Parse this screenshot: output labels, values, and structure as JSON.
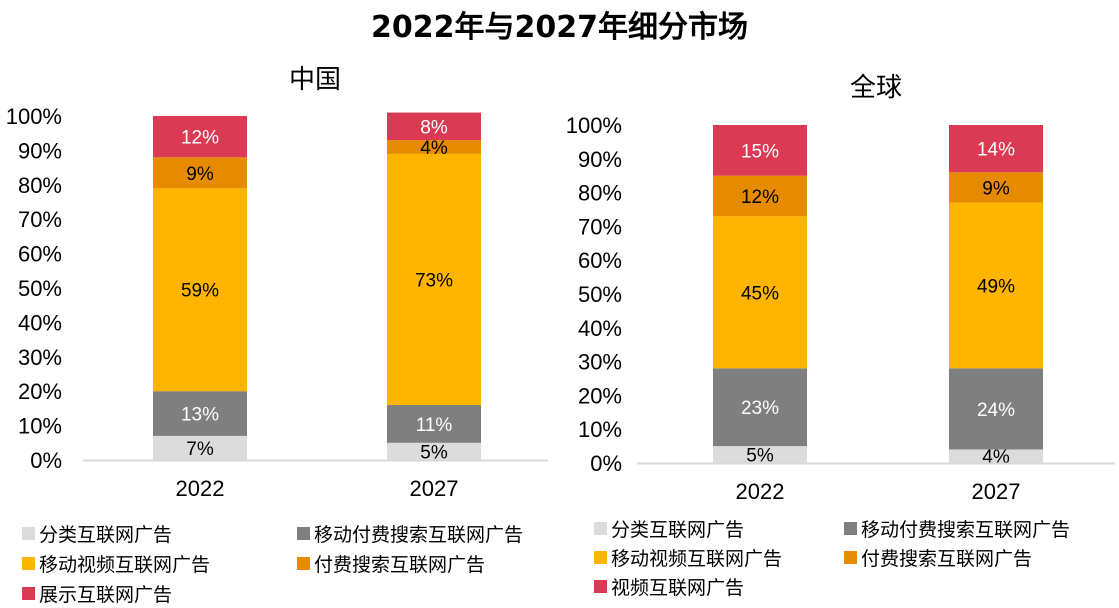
{
  "title": "2022年与2027年细分市场",
  "colors": {
    "classified": "#dcdcdc",
    "mobile_paid_search": "#7f7f7f",
    "mobile_video": "#ffb400",
    "paid_search": "#e68a00",
    "top": "#db3a55",
    "axis": "#d9d9d9"
  },
  "chart_data": [
    {
      "type": "bar",
      "stacked": true,
      "title": "中国",
      "categories": [
        "2022",
        "2027"
      ],
      "ylim": [
        0,
        100
      ],
      "yticks": [
        "0%",
        "10%",
        "20%",
        "30%",
        "40%",
        "50%",
        "60%",
        "70%",
        "80%",
        "90%",
        "100%"
      ],
      "grid": false,
      "legend_position": "bottom",
      "series": [
        {
          "name": "分类互联网广告",
          "color_key": "classified",
          "label_color": "#000000",
          "values": [
            7,
            5
          ],
          "labels": [
            "7%",
            "5%"
          ]
        },
        {
          "name": "移动付费搜索互联网广告",
          "color_key": "mobile_paid_search",
          "label_color": "#ffffff",
          "values": [
            13,
            11
          ],
          "labels": [
            "13%",
            "11%"
          ]
        },
        {
          "name": "移动视频互联网广告",
          "color_key": "mobile_video",
          "label_color": "#000000",
          "values": [
            59,
            73
          ],
          "labels": [
            "59%",
            "73%"
          ]
        },
        {
          "name": "付费搜索互联网广告",
          "color_key": "paid_search",
          "label_color": "#000000",
          "values": [
            9,
            4
          ],
          "labels": [
            "9%",
            "4%"
          ]
        },
        {
          "name": "展示互联网广告",
          "color_key": "top",
          "label_color": "#ffffff",
          "values": [
            12,
            8
          ],
          "labels": [
            "12%",
            "8%"
          ]
        }
      ]
    },
    {
      "type": "bar",
      "stacked": true,
      "title": "全球",
      "categories": [
        "2022",
        "2027"
      ],
      "ylim": [
        0,
        100
      ],
      "yticks": [
        "0%",
        "10%",
        "20%",
        "30%",
        "40%",
        "50%",
        "60%",
        "70%",
        "80%",
        "90%",
        "100%"
      ],
      "grid": false,
      "legend_position": "bottom",
      "series": [
        {
          "name": "分类互联网广告",
          "color_key": "classified",
          "label_color": "#000000",
          "values": [
            5,
            4
          ],
          "labels": [
            "5%",
            "4%"
          ]
        },
        {
          "name": "移动付费搜索互联网广告",
          "color_key": "mobile_paid_search",
          "label_color": "#ffffff",
          "values": [
            23,
            24
          ],
          "labels": [
            "23%",
            "24%"
          ]
        },
        {
          "name": "移动视频互联网广告",
          "color_key": "mobile_video",
          "label_color": "#000000",
          "values": [
            45,
            49
          ],
          "labels": [
            "45%",
            "49%"
          ]
        },
        {
          "name": "付费搜索互联网广告",
          "color_key": "paid_search",
          "label_color": "#000000",
          "values": [
            12,
            9
          ],
          "labels": [
            "12%",
            "9%"
          ]
        },
        {
          "name": "视频互联网广告",
          "color_key": "top",
          "label_color": "#ffffff",
          "values": [
            15,
            14
          ],
          "labels": [
            "15%",
            "14%"
          ]
        }
      ]
    }
  ]
}
